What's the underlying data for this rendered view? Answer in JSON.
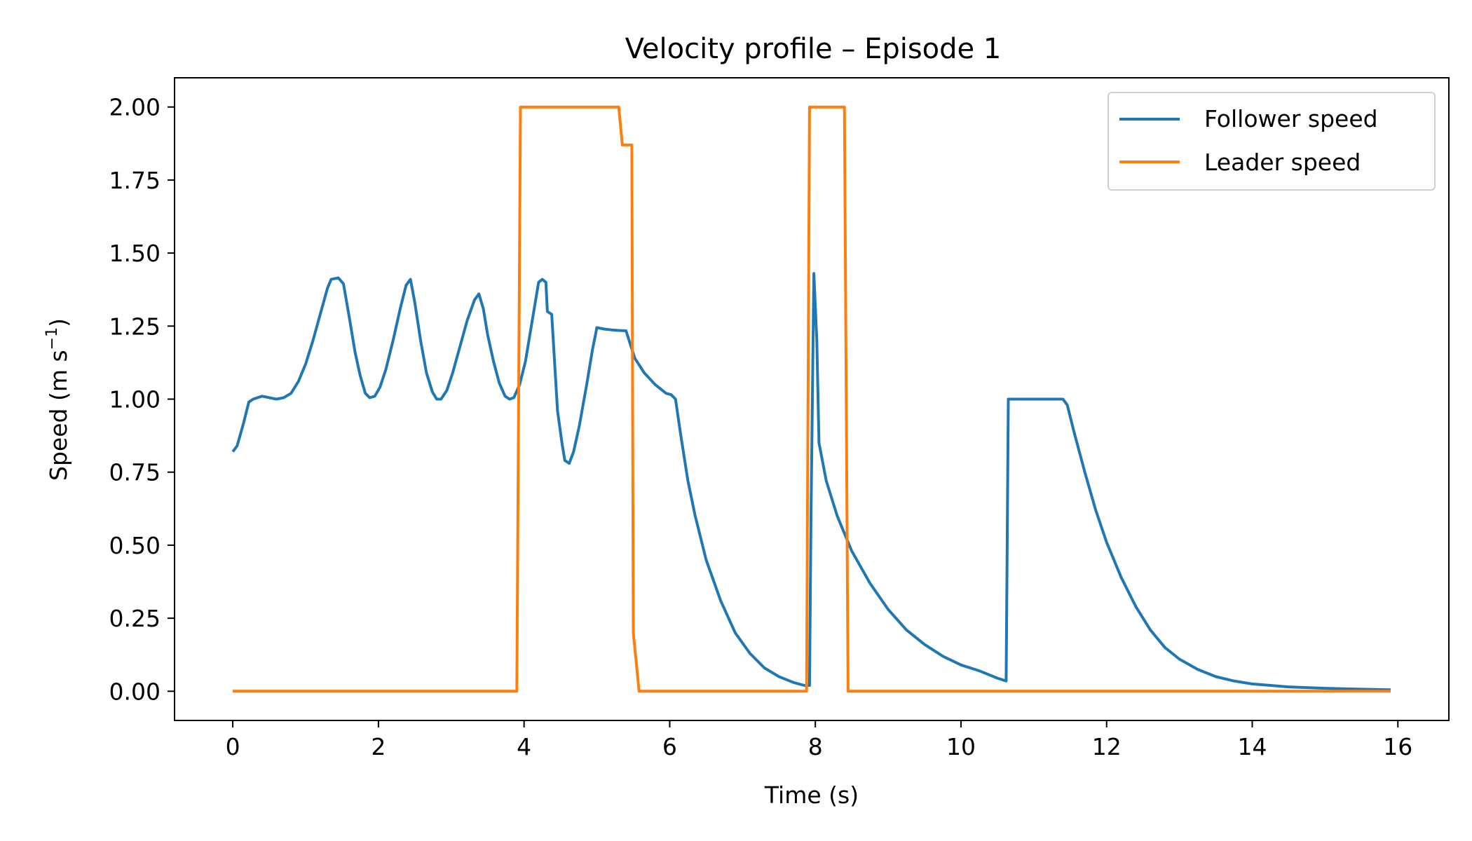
{
  "chart_data": {
    "type": "line",
    "title": "Velocity profile – Episode 1",
    "xlabel": "Time (s)",
    "ylabel": "Speed (m s",
    "ylabel_sup": "−1",
    "ylabel_end": ")",
    "xlim": [
      -0.8,
      16.7
    ],
    "ylim": [
      -0.1,
      2.1
    ],
    "xticks": [
      0,
      2,
      4,
      6,
      8,
      10,
      12,
      14,
      16
    ],
    "xtick_labels": [
      "0",
      "2",
      "4",
      "6",
      "8",
      "10",
      "12",
      "14",
      "16"
    ],
    "yticks": [
      0,
      0.25,
      0.5,
      0.75,
      1.0,
      1.25,
      1.5,
      1.75,
      2.0
    ],
    "ytick_labels": [
      "0.00",
      "0.25",
      "0.50",
      "0.75",
      "1.00",
      "1.25",
      "1.50",
      "1.75",
      "2.00"
    ],
    "grid": false,
    "legend_position": "top-right",
    "series": [
      {
        "name": "Follower speed",
        "color": "#1f77b4",
        "points": [
          [
            0.0,
            0.82
          ],
          [
            0.06,
            0.84
          ],
          [
            0.15,
            0.92
          ],
          [
            0.22,
            0.99
          ],
          [
            0.28,
            1.0
          ],
          [
            0.4,
            1.01
          ],
          [
            0.5,
            1.005
          ],
          [
            0.6,
            1.0
          ],
          [
            0.7,
            1.005
          ],
          [
            0.8,
            1.02
          ],
          [
            0.9,
            1.06
          ],
          [
            1.0,
            1.12
          ],
          [
            1.1,
            1.2
          ],
          [
            1.2,
            1.29
          ],
          [
            1.3,
            1.38
          ],
          [
            1.35,
            1.41
          ],
          [
            1.45,
            1.415
          ],
          [
            1.52,
            1.395
          ],
          [
            1.6,
            1.28
          ],
          [
            1.68,
            1.16
          ],
          [
            1.75,
            1.08
          ],
          [
            1.82,
            1.02
          ],
          [
            1.88,
            1.005
          ],
          [
            1.95,
            1.01
          ],
          [
            2.02,
            1.04
          ],
          [
            2.1,
            1.1
          ],
          [
            2.2,
            1.2
          ],
          [
            2.3,
            1.31
          ],
          [
            2.38,
            1.39
          ],
          [
            2.44,
            1.41
          ],
          [
            2.5,
            1.33
          ],
          [
            2.58,
            1.2
          ],
          [
            2.66,
            1.09
          ],
          [
            2.74,
            1.025
          ],
          [
            2.8,
            1.0
          ],
          [
            2.86,
            1.0
          ],
          [
            2.94,
            1.03
          ],
          [
            3.02,
            1.09
          ],
          [
            3.12,
            1.18
          ],
          [
            3.22,
            1.27
          ],
          [
            3.32,
            1.34
          ],
          [
            3.38,
            1.36
          ],
          [
            3.44,
            1.31
          ],
          [
            3.5,
            1.22
          ],
          [
            3.58,
            1.13
          ],
          [
            3.66,
            1.055
          ],
          [
            3.74,
            1.01
          ],
          [
            3.8,
            1.0
          ],
          [
            3.86,
            1.005
          ],
          [
            3.94,
            1.05
          ],
          [
            4.02,
            1.13
          ],
          [
            4.1,
            1.25
          ],
          [
            4.2,
            1.4
          ],
          [
            4.25,
            1.41
          ],
          [
            4.3,
            1.4
          ],
          [
            4.32,
            1.3
          ],
          [
            4.38,
            1.29
          ],
          [
            4.46,
            0.96
          ],
          [
            4.52,
            0.85
          ],
          [
            4.56,
            0.79
          ],
          [
            4.62,
            0.78
          ],
          [
            4.68,
            0.82
          ],
          [
            4.76,
            0.91
          ],
          [
            4.86,
            1.05
          ],
          [
            4.94,
            1.17
          ],
          [
            4.98,
            1.22
          ],
          [
            5.0,
            1.245
          ],
          [
            5.1,
            1.24
          ],
          [
            5.2,
            1.237
          ],
          [
            5.3,
            1.235
          ],
          [
            5.4,
            1.234
          ],
          [
            5.52,
            1.14
          ],
          [
            5.65,
            1.09
          ],
          [
            5.8,
            1.05
          ],
          [
            5.95,
            1.02
          ],
          [
            6.02,
            1.015
          ],
          [
            6.08,
            1.0
          ],
          [
            6.15,
            0.88
          ],
          [
            6.25,
            0.72
          ],
          [
            6.35,
            0.6
          ],
          [
            6.5,
            0.45
          ],
          [
            6.7,
            0.31
          ],
          [
            6.9,
            0.2
          ],
          [
            7.1,
            0.13
          ],
          [
            7.3,
            0.08
          ],
          [
            7.5,
            0.05
          ],
          [
            7.7,
            0.03
          ],
          [
            7.85,
            0.02
          ],
          [
            7.92,
            0.02
          ],
          [
            7.94,
            0.6
          ],
          [
            7.98,
            1.43
          ],
          [
            8.02,
            1.2
          ],
          [
            8.05,
            0.85
          ],
          [
            8.15,
            0.72
          ],
          [
            8.3,
            0.6
          ],
          [
            8.5,
            0.48
          ],
          [
            8.75,
            0.37
          ],
          [
            9.0,
            0.28
          ],
          [
            9.25,
            0.21
          ],
          [
            9.5,
            0.16
          ],
          [
            9.75,
            0.12
          ],
          [
            10.0,
            0.09
          ],
          [
            10.25,
            0.07
          ],
          [
            10.5,
            0.045
          ],
          [
            10.62,
            0.035
          ],
          [
            10.65,
            1.0
          ],
          [
            10.8,
            1.0
          ],
          [
            11.0,
            1.0
          ],
          [
            11.2,
            1.0
          ],
          [
            11.4,
            1.0
          ],
          [
            11.46,
            0.98
          ],
          [
            11.55,
            0.89
          ],
          [
            11.7,
            0.75
          ],
          [
            11.85,
            0.62
          ],
          [
            12.0,
            0.51
          ],
          [
            12.2,
            0.39
          ],
          [
            12.4,
            0.29
          ],
          [
            12.6,
            0.21
          ],
          [
            12.8,
            0.15
          ],
          [
            13.0,
            0.11
          ],
          [
            13.25,
            0.075
          ],
          [
            13.5,
            0.05
          ],
          [
            13.75,
            0.035
          ],
          [
            14.0,
            0.025
          ],
          [
            14.5,
            0.015
          ],
          [
            15.0,
            0.01
          ],
          [
            15.5,
            0.007
          ],
          [
            15.9,
            0.005
          ]
        ]
      },
      {
        "name": "Leader speed",
        "color": "#ff7f0e",
        "points": [
          [
            0.0,
            0.0
          ],
          [
            3.9,
            0.0
          ],
          [
            3.95,
            2.0
          ],
          [
            5.3,
            2.0
          ],
          [
            5.35,
            1.87
          ],
          [
            5.48,
            1.87
          ],
          [
            5.5,
            0.2
          ],
          [
            5.58,
            0.0
          ],
          [
            7.88,
            0.0
          ],
          [
            7.92,
            2.0
          ],
          [
            8.4,
            2.0
          ],
          [
            8.45,
            0.0
          ],
          [
            15.9,
            0.0
          ]
        ]
      }
    ]
  }
}
